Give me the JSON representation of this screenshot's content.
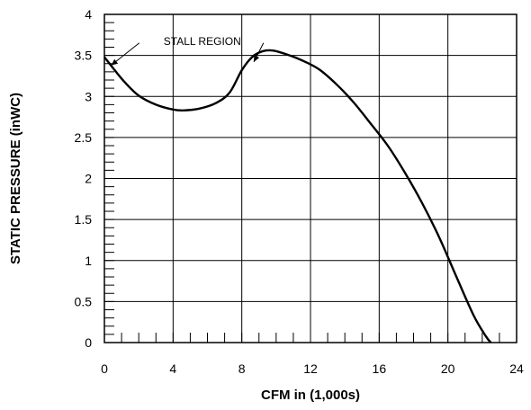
{
  "chart_data": {
    "type": "line",
    "title": "",
    "xlabel": "CFM in (1,000s)",
    "ylabel": "STATIC PRESSURE (inWC)",
    "xlim": [
      0,
      24
    ],
    "ylim": [
      0,
      4
    ],
    "x_ticks": [
      0,
      4,
      8,
      12,
      16,
      20,
      24
    ],
    "x_tick_labels": [
      "0",
      "4",
      "8",
      "12",
      "16",
      "20",
      "24"
    ],
    "y_ticks": [
      0,
      0.5,
      1,
      1.5,
      2,
      2.5,
      3,
      3.5,
      4
    ],
    "y_tick_labels": [
      "0",
      "0.5",
      "1",
      "1.5",
      "2",
      "2.5",
      "3",
      "3.5",
      "4"
    ],
    "grid": true,
    "legend": "none",
    "series": [
      {
        "color": "#000000",
        "x": [
          0,
          0.6,
          1.2,
          2,
          3,
          4,
          4.6,
          5.5,
          6.5,
          7.3,
          8,
          8.6,
          9.2,
          9.8,
          10.5,
          11.5,
          12.5,
          13.5,
          14.5,
          15.5,
          16.5,
          17.5,
          18.5,
          19.5,
          20.5,
          21.5,
          22.2,
          22.5
        ],
        "y": [
          3.48,
          3.32,
          3.17,
          3.01,
          2.9,
          2.84,
          2.83,
          2.85,
          2.92,
          3.05,
          3.32,
          3.48,
          3.55,
          3.56,
          3.52,
          3.44,
          3.33,
          3.15,
          2.93,
          2.67,
          2.4,
          2.07,
          1.7,
          1.28,
          0.8,
          0.33,
          0.08,
          0
        ]
      }
    ],
    "annotations": [
      {
        "text": "STALL REGION",
        "x": 5.7,
        "y": 3.63,
        "arrows_to": [
          [
            0.4,
            3.38
          ],
          [
            8.7,
            3.42
          ]
        ]
      }
    ]
  }
}
